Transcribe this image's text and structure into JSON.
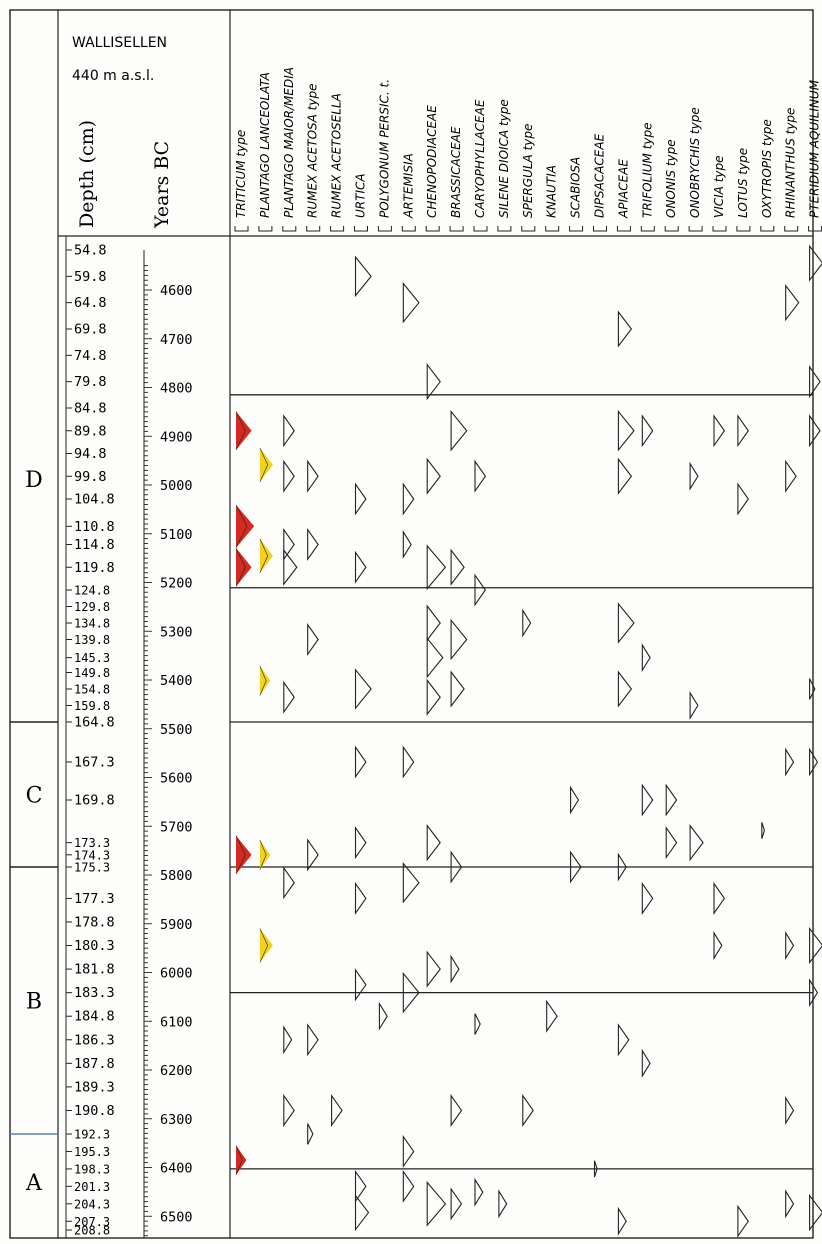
{
  "site": {
    "name": "WALLISELLEN",
    "altitude": "440 m a.s.l."
  },
  "headers": {
    "depth": "Depth (cm)",
    "years": "Years BC"
  },
  "zones": [
    {
      "label": "D",
      "top": 54.8,
      "bottom": 164.8
    },
    {
      "label": "C",
      "top": 164.8,
      "bottom": 175.3
    },
    {
      "label": "B",
      "top": 175.3,
      "bottom": 192.3
    },
    {
      "label": "A",
      "top": 192.3,
      "bottom": 208.8
    }
  ],
  "depths": [
    "54.8",
    "59.8",
    "64.8",
    "69.8",
    "74.8",
    "79.8",
    "84.8",
    "89.8",
    "94.8",
    "99.8",
    "104.8",
    "110.8",
    "114.8",
    "119.8",
    "124.8",
    "129.8",
    "134.8",
    "139.8",
    "145.3",
    "149.8",
    "154.8",
    "159.8",
    "164.8",
    "167.3",
    "169.8",
    "173.3",
    "174.3",
    "175.3",
    "177.3",
    "178.8",
    "180.3",
    "181.8",
    "183.3",
    "184.8",
    "186.3",
    "187.8",
    "189.3",
    "190.8",
    "192.3",
    "195.3",
    "198.3",
    "201.3",
    "204.3",
    "207.3",
    "208.8"
  ],
  "years": [
    "4600",
    "4700",
    "4800",
    "4900",
    "5000",
    "5100",
    "5200",
    "5300",
    "5400",
    "5500",
    "5600",
    "5700",
    "5800",
    "5900",
    "6000",
    "6100",
    "6200",
    "6300",
    "6400",
    "6500"
  ],
  "taxa": [
    "TRITICUM type",
    "PLANTAGO LANCEOLATA",
    "PLANTAGO MAIOR/MEDIA",
    "RUMEX ACETOSA type",
    "RUMEX ACETOSELLA",
    "URTICA",
    "POLYGONUM PERSIC. t.",
    "ARTEMISIA",
    "CHENOPODIACEAE",
    "BRASSICACEAE",
    "CARYOPHYLLACEAE",
    "SILENE DIOICA type",
    "SPERGULA type",
    "KNAUTIA",
    "SCABIOSA",
    "DIPSACACEAE",
    "APIACEAE",
    "TRIFOLIUM type",
    "ONONIS type",
    "ONOBRYCHIS type",
    "VICIA type",
    "LOTUS type",
    "OXYTROPIS type",
    "RHINANTHUS type",
    "PTERIDIUM AQUILINUM"
  ],
  "colors": {
    "triticum": "#d42a22",
    "plantago": "#f2d21b",
    "line": "#222222"
  },
  "curves": [
    {
      "taxon": "TRITICUM type",
      "color": "red",
      "peaks": [
        [
          89.8,
          6
        ],
        [
          110.8,
          7
        ],
        [
          119.8,
          6
        ],
        [
          174.3,
          6
        ],
        [
          196.8,
          4
        ]
      ]
    },
    {
      "taxon": "PLANTAGO LANCEOLATA",
      "color": "yellow",
      "peaks": [
        [
          97.3,
          5
        ],
        [
          117.3,
          5
        ],
        [
          152.3,
          4
        ],
        [
          174.3,
          4
        ],
        [
          180.3,
          5
        ]
      ]
    },
    {
      "taxon": "PLANTAGO MAIOR/MEDIA",
      "peaks": [
        [
          89.8,
          4
        ],
        [
          99.8,
          4
        ],
        [
          114.8,
          4
        ],
        [
          119.8,
          5
        ],
        [
          157.3,
          4
        ],
        [
          176.3,
          4
        ],
        [
          186.3,
          3
        ],
        [
          190.8,
          4
        ]
      ]
    },
    {
      "taxon": "RUMEX ACETOSA type",
      "peaks": [
        [
          99.8,
          4
        ],
        [
          114.8,
          4
        ],
        [
          139.8,
          4
        ],
        [
          174.3,
          4
        ],
        [
          186.3,
          4
        ],
        [
          192.3,
          2
        ]
      ]
    },
    {
      "taxon": "RUMEX ACETOSELLA",
      "peaks": [
        [
          190.8,
          4
        ]
      ]
    },
    {
      "taxon": "URTICA",
      "peaks": [
        [
          59.8,
          6
        ],
        [
          104.8,
          4
        ],
        [
          119.8,
          4
        ],
        [
          154.8,
          6
        ],
        [
          167.3,
          4
        ],
        [
          173.3,
          4
        ],
        [
          177.3,
          4
        ],
        [
          182.8,
          4
        ],
        [
          201.3,
          4
        ],
        [
          205.8,
          5
        ]
      ]
    },
    {
      "taxon": "POLYGONUM PERSIC. t.",
      "peaks": [
        [
          184.8,
          3
        ]
      ]
    },
    {
      "taxon": "ARTEMISIA",
      "peaks": [
        [
          64.8,
          6
        ],
        [
          104.8,
          4
        ],
        [
          114.8,
          3
        ],
        [
          167.3,
          4
        ],
        [
          176.3,
          6
        ],
        [
          183.3,
          6
        ],
        [
          195.3,
          4
        ],
        [
          201.3,
          4
        ]
      ]
    },
    {
      "taxon": "CHENOPODIACEAE",
      "peaks": [
        [
          79.8,
          5
        ],
        [
          99.8,
          5
        ],
        [
          119.8,
          7
        ],
        [
          134.8,
          5
        ],
        [
          145.3,
          6
        ],
        [
          157.3,
          5
        ],
        [
          173.3,
          5
        ],
        [
          181.8,
          5
        ],
        [
          204.3,
          7
        ]
      ]
    },
    {
      "taxon": "BRASSICACEAE",
      "peaks": [
        [
          89.8,
          6
        ],
        [
          119.8,
          5
        ],
        [
          139.8,
          6
        ],
        [
          154.8,
          5
        ],
        [
          175.3,
          4
        ],
        [
          181.8,
          3
        ],
        [
          190.8,
          4
        ],
        [
          204.3,
          4
        ]
      ]
    },
    {
      "taxon": "CARYOPHYLLACEAE",
      "peaks": [
        [
          99.8,
          4
        ],
        [
          124.8,
          4
        ],
        [
          185.3,
          2
        ],
        [
          202.3,
          3
        ]
      ]
    },
    {
      "taxon": "SILENE DIOICA type",
      "peaks": [
        [
          204.3,
          3
        ]
      ]
    },
    {
      "taxon": "SPERGULA type",
      "peaks": [
        [
          134.8,
          3
        ],
        [
          190.8,
          4
        ]
      ]
    },
    {
      "taxon": "KNAUTIA",
      "peaks": [
        [
          184.8,
          4
        ]
      ]
    },
    {
      "taxon": "SCABIOSA",
      "peaks": [
        [
          169.8,
          3
        ],
        [
          175.3,
          4
        ]
      ]
    },
    {
      "taxon": "DIPSACACEAE",
      "peaks": [
        [
          198.3,
          1
        ]
      ]
    },
    {
      "taxon": "APIACEAE",
      "peaks": [
        [
          69.8,
          5
        ],
        [
          89.8,
          6
        ],
        [
          99.8,
          5
        ],
        [
          134.8,
          6
        ],
        [
          154.8,
          5
        ],
        [
          175.3,
          3
        ],
        [
          186.3,
          4
        ],
        [
          207.3,
          3
        ]
      ]
    },
    {
      "taxon": "TRIFOLIUM type",
      "peaks": [
        [
          89.8,
          4
        ],
        [
          145.3,
          3
        ],
        [
          169.8,
          4
        ],
        [
          177.3,
          4
        ],
        [
          187.8,
          3
        ]
      ]
    },
    {
      "taxon": "ONONIS type",
      "peaks": [
        [
          169.8,
          4
        ],
        [
          173.3,
          4
        ]
      ]
    },
    {
      "taxon": "ONOBRYCHIS type",
      "peaks": [
        [
          99.8,
          3
        ],
        [
          159.8,
          3
        ],
        [
          173.3,
          5
        ]
      ]
    },
    {
      "taxon": "VICIA type",
      "peaks": [
        [
          89.8,
          4
        ],
        [
          177.3,
          4
        ],
        [
          180.3,
          3
        ]
      ]
    },
    {
      "taxon": "LOTUS type",
      "peaks": [
        [
          89.8,
          4
        ],
        [
          104.8,
          4
        ],
        [
          207.3,
          4
        ]
      ]
    },
    {
      "taxon": "OXYTROPIS type",
      "peaks": [
        [
          172.3,
          1
        ]
      ]
    },
    {
      "taxon": "RHINANTHUS type",
      "peaks": [
        [
          64.8,
          5
        ],
        [
          99.8,
          4
        ],
        [
          167.3,
          3
        ],
        [
          180.3,
          3
        ],
        [
          190.8,
          3
        ],
        [
          204.3,
          3
        ]
      ]
    },
    {
      "taxon": "PTERIDIUM AQUILINUM",
      "peaks": [
        [
          57.3,
          5
        ],
        [
          79.8,
          4
        ],
        [
          89.8,
          4
        ],
        [
          154.8,
          2
        ],
        [
          167.3,
          3
        ],
        [
          180.3,
          5
        ],
        [
          183.3,
          3
        ],
        [
          205.8,
          5
        ]
      ]
    }
  ],
  "horizon_lines": [
    82.3,
    124.3,
    164.8,
    175.3,
    183.3,
    198.3
  ]
}
